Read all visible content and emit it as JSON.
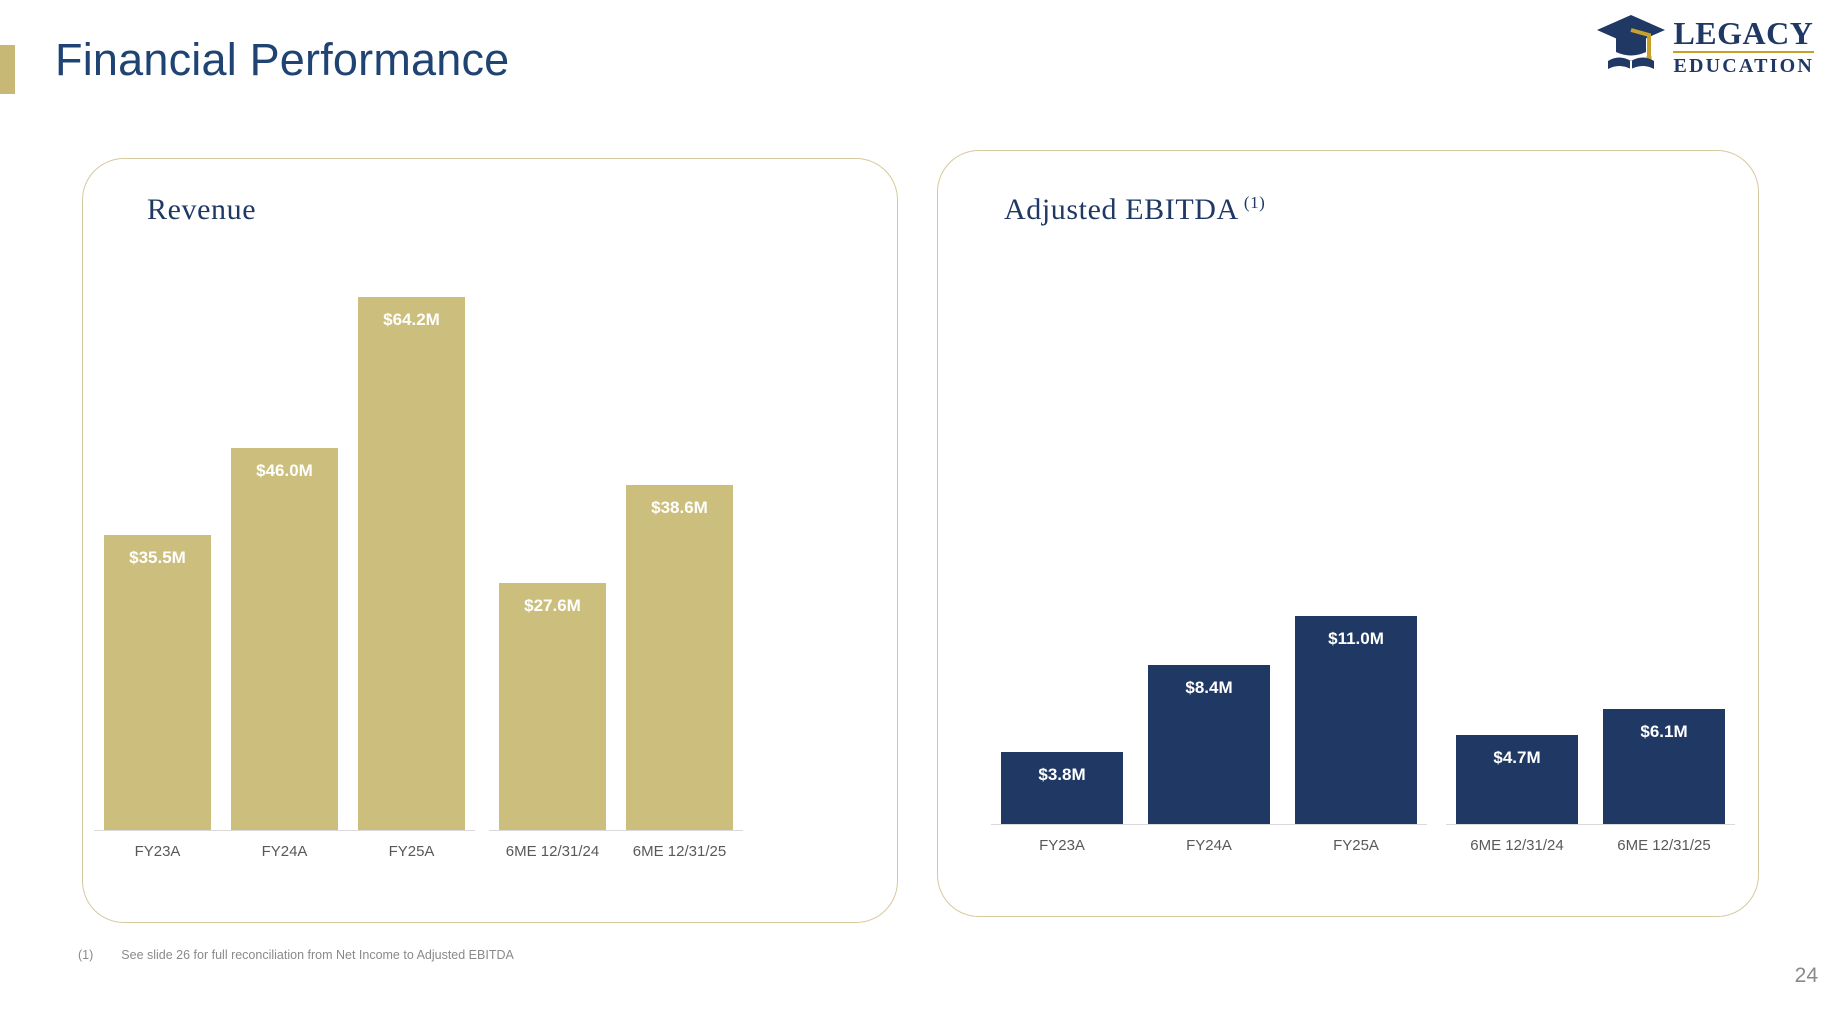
{
  "header": {
    "title": "Financial Performance",
    "logo": {
      "line1": "LEGACY",
      "line2": "EDUCATION"
    }
  },
  "chart_data": [
    {
      "type": "bar",
      "title": "Revenue",
      "categories": [
        "FY23A",
        "FY24A",
        "FY25A",
        "6ME 12/31/24",
        "6ME 12/31/25"
      ],
      "values": [
        35.5,
        46.0,
        64.2,
        27.6,
        38.6
      ],
      "data_labels": [
        "$35.5M",
        "$46.0M",
        "$64.2M",
        "$27.6M",
        "$38.6M"
      ],
      "unit": "$M",
      "groups": [
        [
          0,
          1,
          2
        ],
        [
          3,
          4
        ]
      ],
      "bar_color": "#CCBE7C",
      "data_label_color": "#FFFFFF",
      "axis_label_color": "#595959",
      "data_label_position": "inside-top",
      "grid": false,
      "legend": false,
      "baseline_axis": true
    },
    {
      "type": "bar",
      "title": "Adjusted EBITDA",
      "title_superscript": "(1)",
      "categories": [
        "FY23A",
        "FY24A",
        "FY25A",
        "6ME 12/31/24",
        "6ME 12/31/25"
      ],
      "values": [
        3.8,
        8.4,
        11.0,
        4.7,
        6.1
      ],
      "data_labels": [
        "$3.8M",
        "$8.4M",
        "$11.0M",
        "$4.7M",
        "$6.1M"
      ],
      "unit": "$M",
      "groups": [
        [
          0,
          1,
          2
        ],
        [
          3,
          4
        ]
      ],
      "bar_color": "#1F3864",
      "data_label_color": "#FFFFFF",
      "axis_label_color": "#595959",
      "data_label_position": "inside-top",
      "grid": false,
      "legend": false,
      "baseline_axis": true
    }
  ],
  "footnote": {
    "marker": "(1)",
    "text": "See slide 26 for full reconciliation from Net Income to Adjusted EBITDA"
  },
  "page_number": "24"
}
